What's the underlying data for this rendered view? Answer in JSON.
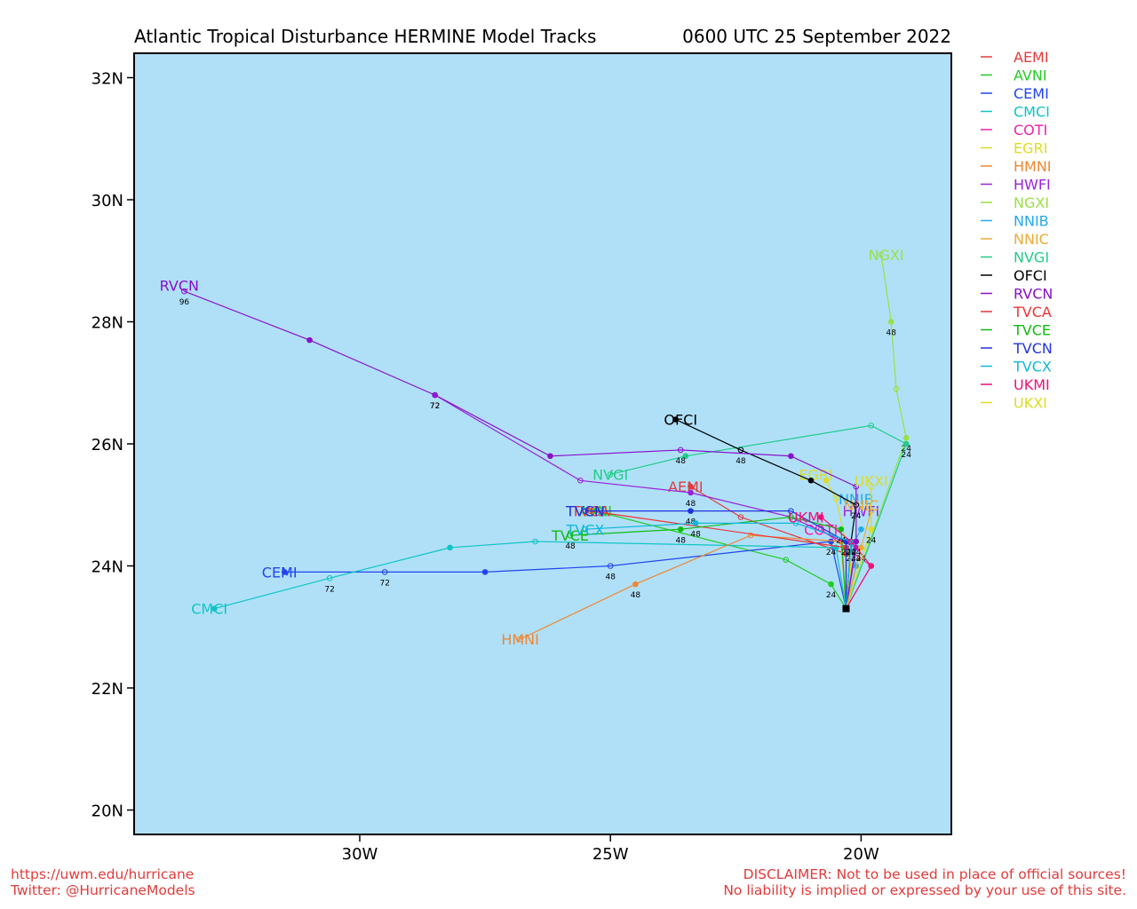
{
  "footer": {
    "url": "https://uwm.edu/hurricane",
    "twitter": "Twitter: @HurricaneModels",
    "disclaimer_1": "DISCLAIMER: Not to be used in place of official sources!",
    "disclaimer_2": "No liability is implied or expressed by your use of this site."
  },
  "chart_data": {
    "type": "line",
    "title": "Atlantic Tropical Disturbance HERMINE Model Tracks",
    "subtitle": "0600 UTC 25 September 2022",
    "xlim": [
      -34.5,
      -18.2
    ],
    "ylim": [
      19.6,
      32.4
    ],
    "x_ticks": [
      {
        "value": -30,
        "label": "30W"
      },
      {
        "value": -25,
        "label": "25W"
      },
      {
        "value": -20,
        "label": "20W"
      }
    ],
    "y_ticks": [
      {
        "value": 20,
        "label": "20N"
      },
      {
        "value": 22,
        "label": "22N"
      },
      {
        "value": 24,
        "label": "24N"
      },
      {
        "value": 26,
        "label": "26N"
      },
      {
        "value": 28,
        "label": "28N"
      },
      {
        "value": 30,
        "label": "30N"
      },
      {
        "value": 32,
        "label": "32N"
      }
    ],
    "background_color": "#b0e0f8",
    "legend_position": "right-outside",
    "start_point": {
      "lon": -20.3,
      "lat": 23.3
    },
    "series": [
      {
        "name": "AEMI",
        "color": "#e23b3b",
        "label_pos": [
          -23.5,
          25.3
        ],
        "points": [
          [
            -20.3,
            23.3
          ],
          [
            -20.3,
            24.2
          ],
          [
            -22.4,
            24.8
          ],
          [
            -23.4,
            25.3
          ]
        ],
        "hours": []
      },
      {
        "name": "AVNI",
        "color": "#22cc22",
        "label_pos": [
          -25.3,
          24.9
        ],
        "points": [
          [
            -20.3,
            23.3
          ],
          [
            -20.6,
            23.7
          ],
          [
            -21.5,
            24.1
          ],
          [
            -25.3,
            24.9
          ]
        ],
        "hours": [
          "",
          "24",
          "",
          ""
        ]
      },
      {
        "name": "CEMI",
        "color": "#2244ee",
        "label_pos": [
          -31.6,
          23.9
        ],
        "points": [
          [
            -20.3,
            23.3
          ],
          [
            -20.6,
            24.4
          ],
          [
            -25.0,
            24.0
          ],
          [
            -27.5,
            23.9
          ],
          [
            -29.5,
            23.9
          ],
          [
            -31.5,
            23.9
          ]
        ],
        "hours": [
          "",
          "24",
          "48",
          "",
          "72",
          ""
        ]
      },
      {
        "name": "CMCI",
        "color": "#11c4c4",
        "label_pos": [
          -33.0,
          23.3
        ],
        "points": [
          [
            -20.3,
            23.3
          ],
          [
            -20.5,
            24.3
          ],
          [
            -26.5,
            24.4
          ],
          [
            -28.2,
            24.3
          ],
          [
            -30.6,
            23.8
          ],
          [
            -32.9,
            23.3
          ]
        ],
        "hours": [
          "",
          "",
          "",
          "",
          "72",
          ""
        ]
      },
      {
        "name": "COTI",
        "color": "#ee22aa",
        "label_pos": [
          -20.8,
          24.6
        ],
        "points": [
          [
            -20.3,
            23.3
          ],
          [
            -19.8,
            24.0
          ],
          [
            -20.8,
            24.6
          ]
        ],
        "hours": [
          "",
          "",
          ""
        ]
      },
      {
        "name": "EGRI",
        "color": "#dddd22",
        "label_pos": [
          -20.9,
          25.5
        ],
        "points": [
          [
            -20.3,
            23.3
          ],
          [
            -20.2,
            24.0
          ],
          [
            -20.5,
            25.1
          ],
          [
            -20.7,
            25.4
          ]
        ],
        "hours": [
          "",
          "",
          "",
          ""
        ]
      },
      {
        "name": "HMNI",
        "color": "#ee8833",
        "label_pos": [
          -26.8,
          22.8
        ],
        "points": [
          [
            -20.3,
            23.3
          ],
          [
            -20.4,
            24.4
          ],
          [
            -22.2,
            24.5
          ],
          [
            -24.5,
            23.7
          ],
          [
            -26.8,
            22.8
          ]
        ],
        "hours": [
          "",
          "",
          "",
          "48",
          ""
        ]
      },
      {
        "name": "HWFI",
        "color": "#9922dd",
        "label_pos": [
          -20.0,
          24.9
        ],
        "points": [
          [
            -20.3,
            23.3
          ],
          [
            -20.1,
            24.3
          ],
          [
            -21.4,
            24.8
          ],
          [
            -23.4,
            25.2
          ],
          [
            -25.6,
            25.4
          ],
          [
            -28.5,
            26.8
          ]
        ],
        "hours": [
          "",
          "24",
          "",
          "48",
          "",
          "72"
        ]
      },
      {
        "name": "NGXI",
        "color": "#99e044",
        "label_pos": [
          -19.5,
          29.1
        ],
        "points": [
          [
            -20.3,
            23.3
          ],
          [
            -19.1,
            26.1
          ],
          [
            -19.3,
            26.9
          ],
          [
            -19.4,
            28.0
          ],
          [
            -19.6,
            29.1
          ]
        ],
        "hours": [
          "",
          "24",
          "",
          "48",
          ""
        ]
      },
      {
        "name": "NNIB",
        "color": "#22aaee",
        "label_pos": [
          -20.1,
          25.1
        ],
        "points": [
          [
            -20.3,
            23.3
          ],
          [
            -20.1,
            24.0
          ],
          [
            -20.2,
            24.3
          ],
          [
            -20.0,
            24.6
          ]
        ],
        "hours": [
          "",
          "",
          "24",
          ""
        ]
      },
      {
        "name": "NNIC",
        "color": "#eeaa33",
        "label_pos": [
          -20.0,
          25.0
        ],
        "points": [
          [
            -20.3,
            23.3
          ],
          [
            -20.0,
            24.3
          ],
          [
            -19.8,
            24.9
          ]
        ],
        "hours": [
          "",
          "24",
          ""
        ]
      },
      {
        "name": "NVGI",
        "color": "#22cc88",
        "label_pos": [
          -25.0,
          25.5
        ],
        "points": [
          [
            -20.3,
            23.3
          ],
          [
            -19.1,
            26.0
          ],
          [
            -19.8,
            26.3
          ],
          [
            -23.5,
            25.8
          ],
          [
            -25.0,
            25.5
          ]
        ],
        "hours": [
          "",
          "24",
          "",
          "",
          ""
        ]
      },
      {
        "name": "OFCI",
        "color": "#000000",
        "label_pos": [
          -23.6,
          26.4
        ],
        "points": [
          [
            -20.3,
            23.3
          ],
          [
            -20.2,
            24.4
          ],
          [
            -20.1,
            25.0
          ],
          [
            -21.0,
            25.4
          ],
          [
            -22.4,
            25.9
          ],
          [
            -23.7,
            26.4
          ]
        ],
        "hours": [
          "",
          "24",
          "24",
          "",
          "48",
          ""
        ]
      },
      {
        "name": "RVCN",
        "color": "#8811cc",
        "label_pos": [
          -33.6,
          28.6
        ],
        "points": [
          [
            -20.3,
            23.3
          ],
          [
            -20.1,
            24.4
          ],
          [
            -20.1,
            25.3
          ],
          [
            -21.4,
            25.8
          ],
          [
            -23.6,
            25.9
          ],
          [
            -26.2,
            25.8
          ],
          [
            -28.5,
            26.8
          ],
          [
            -31.0,
            27.7
          ],
          [
            -33.5,
            28.5
          ]
        ],
        "hours": [
          "",
          "24",
          "",
          "",
          "48",
          "",
          "72",
          "",
          "96"
        ]
      },
      {
        "name": "TVCA",
        "color": "#ee3333",
        "label_pos": [
          -25.4,
          24.9
        ],
        "points": [
          [
            -20.3,
            23.3
          ],
          [
            -20.3,
            24.3
          ],
          [
            -25.4,
            24.9
          ]
        ],
        "hours": [
          "",
          "",
          ""
        ]
      },
      {
        "name": "TVCE",
        "color": "#11bb11",
        "label_pos": [
          -25.8,
          24.5
        ],
        "points": [
          [
            -20.3,
            23.3
          ],
          [
            -20.4,
            24.6
          ],
          [
            -21.4,
            24.8
          ],
          [
            -23.6,
            24.6
          ],
          [
            -25.8,
            24.5
          ]
        ],
        "hours": [
          "",
          "24",
          "",
          "48",
          "48"
        ]
      },
      {
        "name": "TVCN",
        "color": "#2233dd",
        "label_pos": [
          -25.5,
          24.9
        ],
        "points": [
          [
            -20.3,
            23.3
          ],
          [
            -20.3,
            24.4
          ],
          [
            -21.4,
            24.9
          ],
          [
            -23.4,
            24.9
          ],
          [
            -25.5,
            24.9
          ]
        ],
        "hours": [
          "",
          "24",
          "",
          "48",
          ""
        ]
      },
      {
        "name": "TVCX",
        "color": "#11b8d8",
        "label_pos": [
          -25.5,
          24.6
        ],
        "points": [
          [
            -20.3,
            23.3
          ],
          [
            -20.2,
            24.4
          ],
          [
            -21.3,
            24.7
          ],
          [
            -23.3,
            24.7
          ],
          [
            -25.5,
            24.6
          ]
        ],
        "hours": [
          "",
          "24",
          "",
          "48",
          ""
        ]
      },
      {
        "name": "UKMI",
        "color": "#ee1177",
        "label_pos": [
          -21.1,
          24.8
        ],
        "points": [
          [
            -20.3,
            23.3
          ],
          [
            -19.8,
            24.0
          ],
          [
            -20.2,
            24.4
          ],
          [
            -20.8,
            24.8
          ]
        ],
        "hours": [
          "",
          "",
          "",
          ""
        ]
      },
      {
        "name": "UKXI",
        "color": "#dddd22",
        "label_pos": [
          -19.8,
          25.4
        ],
        "points": [
          [
            -20.3,
            23.3
          ],
          [
            -19.8,
            24.6
          ],
          [
            -19.8,
            25.3
          ]
        ],
        "hours": [
          "",
          "24",
          ""
        ]
      }
    ]
  }
}
